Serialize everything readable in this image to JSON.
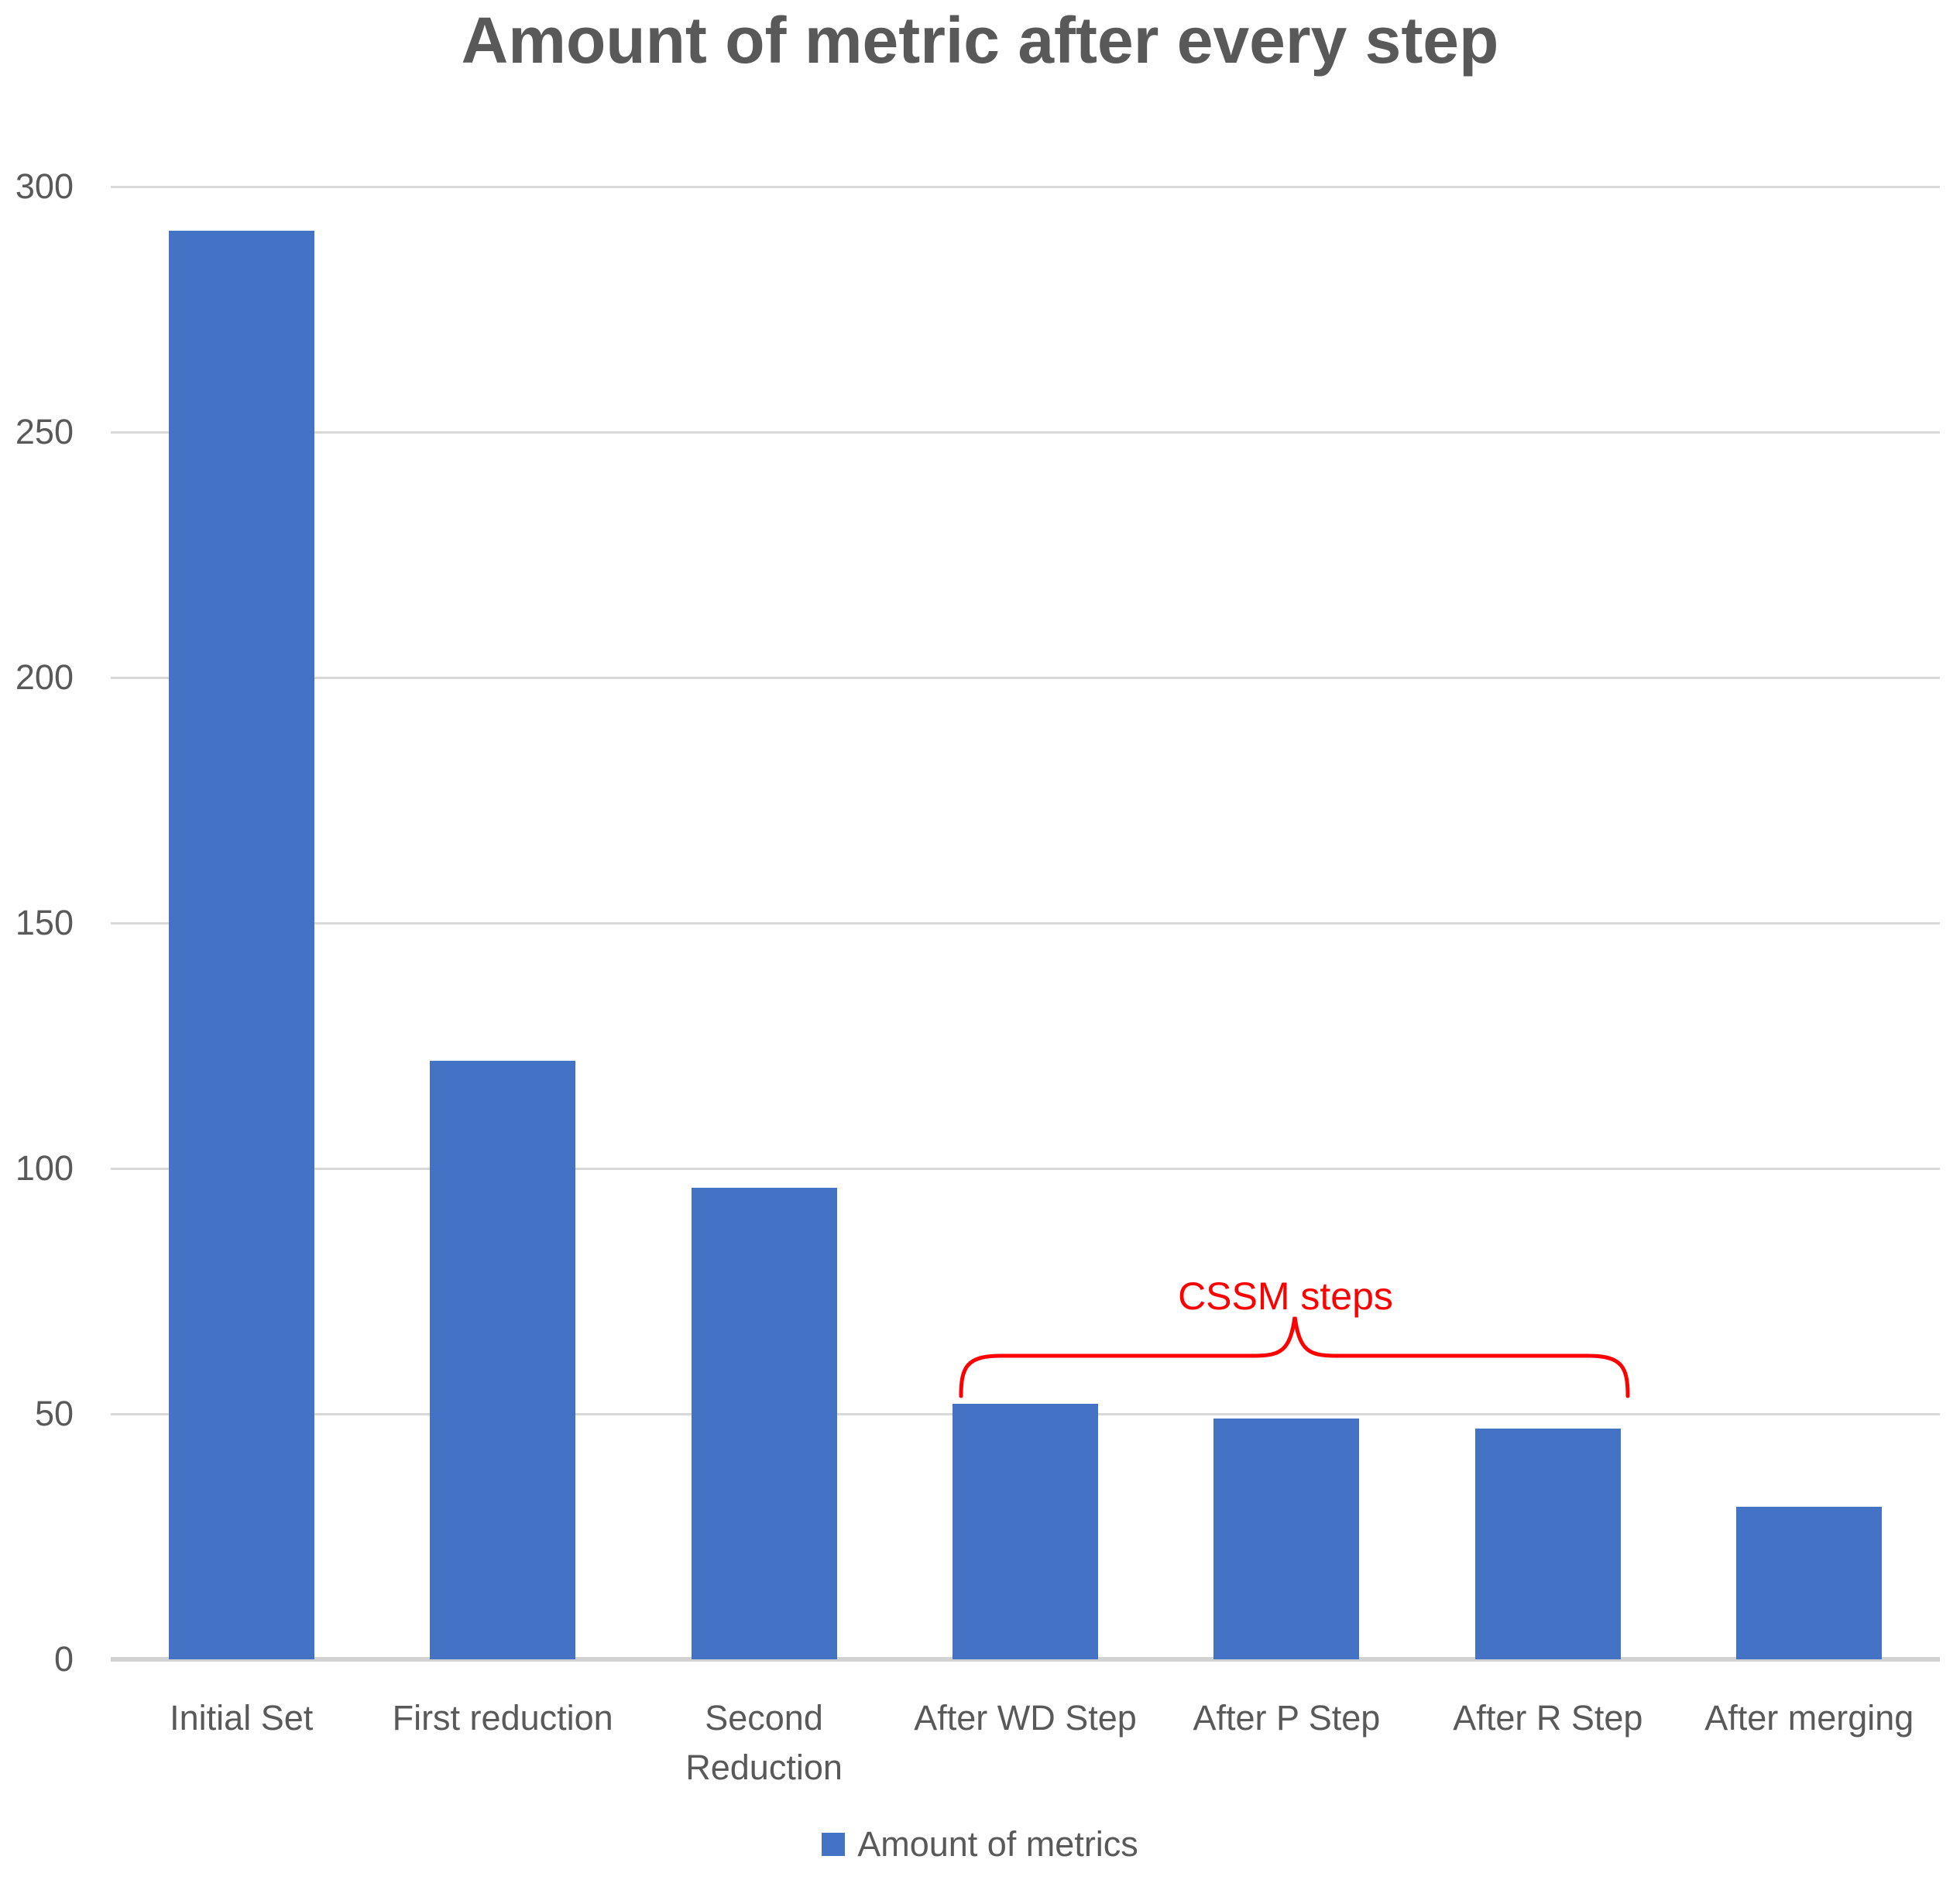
{
  "title": "Amount of metric after every step",
  "legend": {
    "label": "Amount of metrics",
    "swatch_color": "#4472C4"
  },
  "annotation": {
    "label": "CSSM steps",
    "color": "#FF0000"
  },
  "colors": {
    "bar": "#4472C4",
    "gridline": "#D9D9D9",
    "axis_line": "#D2D2D2",
    "text": "#595959",
    "title": "#595959",
    "annotation": "#FF0000"
  },
  "chart_data": {
    "type": "bar",
    "title": "Amount of metric after every step",
    "categories": [
      "Initial Set",
      "First reduction",
      "Second Reduction",
      "After WD Step",
      "After P Step",
      "After R Step",
      "After merging"
    ],
    "values": [
      291,
      122,
      96,
      52,
      49,
      47,
      31
    ],
    "series_name": "Amount of metrics",
    "xlabel": "",
    "ylabel": "",
    "ylim": [
      0,
      300
    ],
    "yticks": [
      0,
      50,
      100,
      150,
      200,
      250,
      300
    ],
    "grid": true,
    "legend_position": "bottom",
    "annotation": {
      "text": "CSSM steps",
      "applies_to": [
        "After WD Step",
        "After P Step",
        "After R Step"
      ]
    }
  }
}
